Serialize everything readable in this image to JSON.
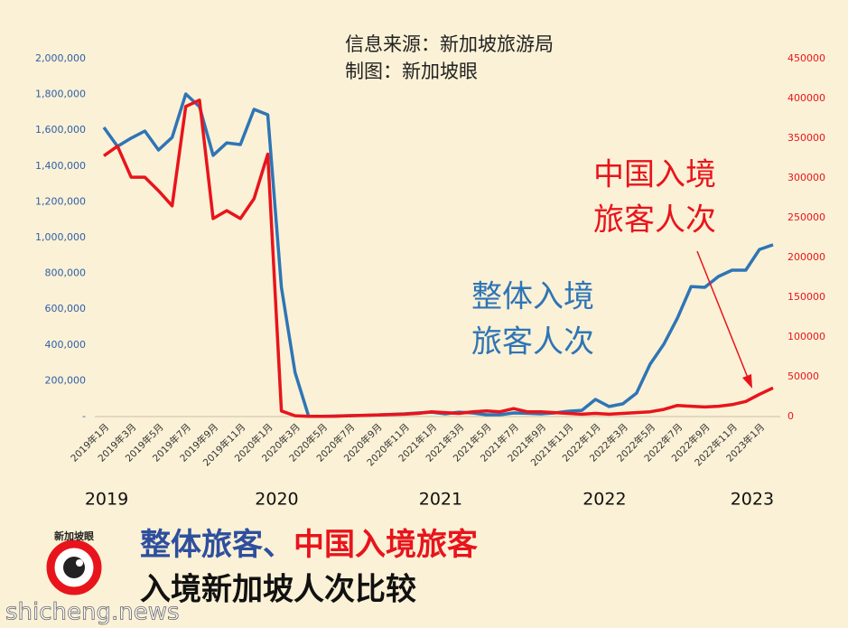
{
  "chart_data": {
    "type": "line",
    "source_lines": [
      "信息来源：新加坡旅游局",
      "制图：新加坡眼"
    ],
    "annotations": [
      {
        "lines": [
          "中国入境",
          "旅客人次"
        ],
        "color": "#e8141c"
      },
      {
        "lines": [
          "整体入境",
          "旅客人次"
        ],
        "color": "#2e75b6"
      }
    ],
    "title_parts": [
      {
        "text": "整体旅客、",
        "color": "#2e4f9e"
      },
      {
        "text": "中国入境旅客",
        "color": "#e8141c"
      }
    ],
    "title_line2": "入境新加坡人次比较",
    "logo_text": "新加坡眼",
    "watermark": "shicheng.news",
    "year_labels": [
      "2019",
      "2020",
      "2021",
      "2022",
      "2023"
    ],
    "categories": [
      "2019年1月",
      null,
      "2019年3月",
      null,
      "2019年5月",
      null,
      "2019年7月",
      null,
      "2019年9月",
      null,
      "2019年11月",
      null,
      "2020年1月",
      null,
      "2020年3月",
      null,
      "2020年5月",
      null,
      "2020年7月",
      null,
      "2020年9月",
      null,
      "2020年11月",
      null,
      "2021年1月",
      null,
      "2021年3月",
      null,
      "2021年5月",
      null,
      "2021年7月",
      null,
      "2021年9月",
      null,
      "2021年11月",
      null,
      "2022年1月",
      null,
      "2022年3月",
      null,
      "2022年5月",
      null,
      "2022年7月",
      null,
      "2022年9月",
      null,
      "2022年11月",
      null,
      "2023年1月",
      null
    ],
    "series": [
      {
        "name": "整体入境旅客人次",
        "color": "#2e75b6",
        "axis": "y",
        "values": [
          1616000,
          1510000,
          1556000,
          1596000,
          1490000,
          1560000,
          1803000,
          1732000,
          1460000,
          1530000,
          1520000,
          1717000,
          1687000,
          722000,
          247000,
          1000,
          1500,
          3000,
          5000,
          7000,
          9000,
          12000,
          15000,
          20000,
          25000,
          15000,
          25000,
          20000,
          10000,
          10000,
          20000,
          18000,
          15000,
          20000,
          30000,
          35000,
          96000,
          56000,
          71000,
          131000,
          293000,
          404000,
          550000,
          727000,
          722000,
          783000,
          818000,
          818000,
          934000,
          960000
        ]
      },
      {
        "name": "中国入境旅客人次",
        "color": "#e8141c",
        "axis": "y2",
        "values": [
          328000,
          340000,
          301000,
          301000,
          284000,
          265000,
          390000,
          398000,
          249000,
          259000,
          249000,
          274000,
          330000,
          7000,
          1000,
          300,
          300,
          500,
          1000,
          1500,
          2000,
          2500,
          3000,
          4000,
          6000,
          5000,
          4000,
          6000,
          7000,
          6000,
          10000,
          6000,
          6000,
          5000,
          4000,
          3000,
          4000,
          3000,
          4000,
          5000,
          6000,
          9000,
          14000,
          13000,
          12000,
          13000,
          15000,
          19000,
          28000,
          36000
        ]
      }
    ],
    "ylim": [
      0,
      2000000
    ],
    "yticks": [
      {
        "value": 0,
        "label": "-"
      },
      {
        "value": 200000,
        "label": "200,000"
      },
      {
        "value": 400000,
        "label": "400,000"
      },
      {
        "value": 600000,
        "label": "600,000"
      },
      {
        "value": 800000,
        "label": "800,000"
      },
      {
        "value": 1000000,
        "label": "1,000,000"
      },
      {
        "value": 1200000,
        "label": "1,200,000"
      },
      {
        "value": 1400000,
        "label": "1,400,000"
      },
      {
        "value": 1600000,
        "label": "1,600,000"
      },
      {
        "value": 1800000,
        "label": "1,800,000"
      },
      {
        "value": 2000000,
        "label": "2,000,000"
      }
    ],
    "y2lim": [
      0,
      450000
    ],
    "y2ticks": [
      0,
      50000,
      100000,
      150000,
      200000,
      250000,
      300000,
      350000,
      400000,
      450000
    ],
    "grid": false
  }
}
